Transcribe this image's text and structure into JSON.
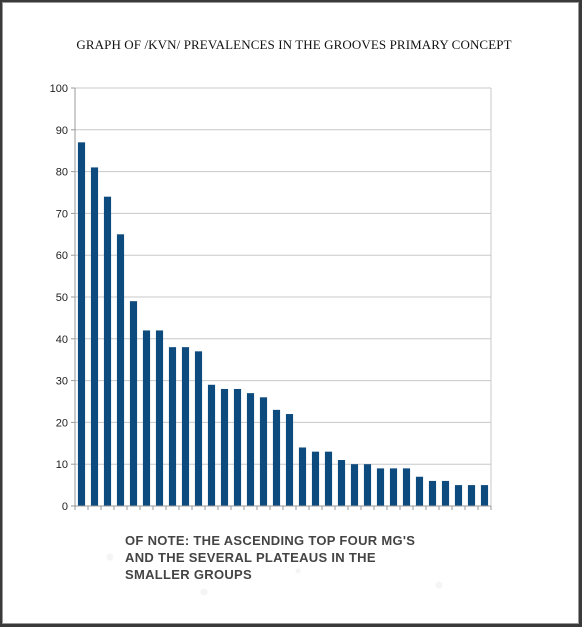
{
  "title": "GRAPH OF /KVN/  PREVALENCES IN THE GROOVES PRIMARY CONCEPT",
  "note": {
    "line1": "OF NOTE:  THE ASCENDING TOP FOUR MG'S",
    "line2": "AND THE SEVERAL PLATEAUS IN THE",
    "line3": "SMALLER GROUPS"
  },
  "colors": {
    "bar": "#0d4a7e",
    "grid": "#c8c8c8",
    "axis": "#999999"
  },
  "chart_data": {
    "type": "bar",
    "title": "GRAPH OF /KVN/  PREVALENCES IN THE GROOVES PRIMARY CONCEPT",
    "xlabel": "",
    "ylabel": "",
    "ylim": [
      0,
      100
    ],
    "yticks": [
      0,
      10,
      20,
      30,
      40,
      50,
      60,
      70,
      80,
      90,
      100
    ],
    "grid": true,
    "legend": "none",
    "values": [
      87,
      81,
      74,
      65,
      49,
      42,
      42,
      38,
      38,
      37,
      29,
      28,
      28,
      27,
      26,
      23,
      22,
      14,
      13,
      13,
      11,
      10,
      10,
      9,
      9,
      9,
      7,
      6,
      6,
      5,
      5,
      5
    ]
  }
}
